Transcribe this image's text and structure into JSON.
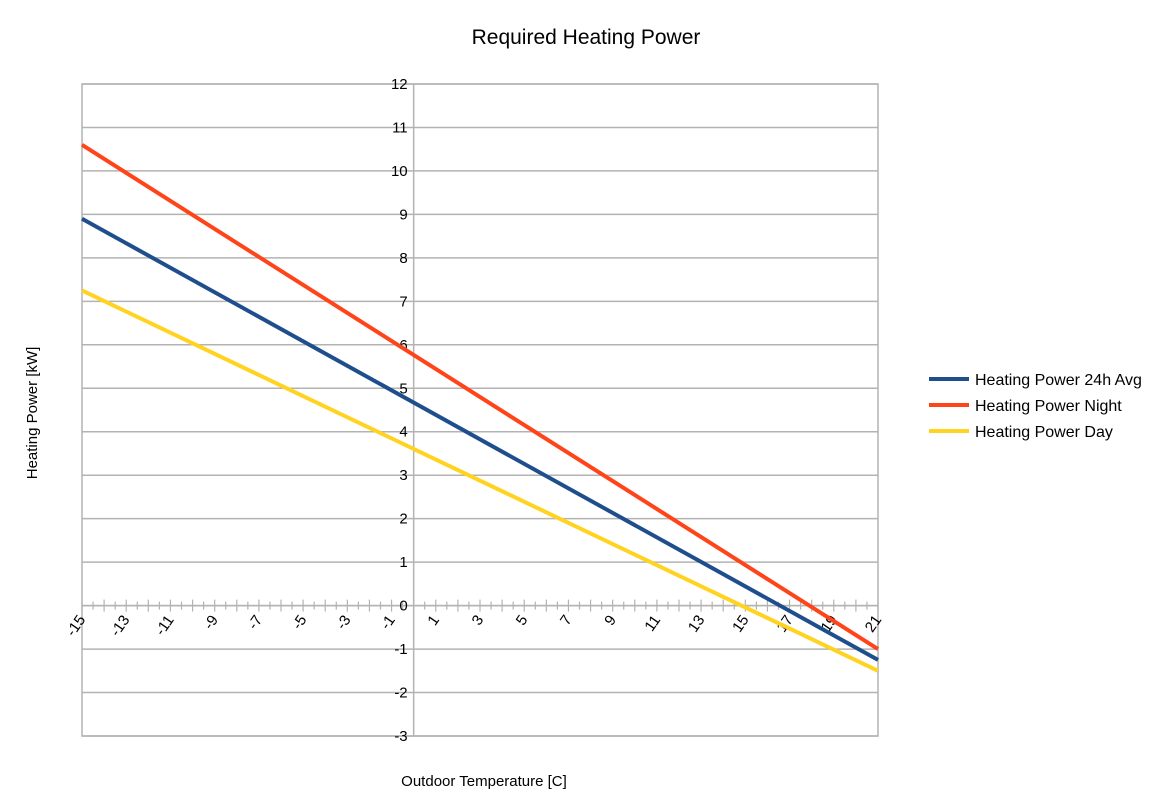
{
  "chart_data": {
    "type": "line",
    "title": "Required Heating Power",
    "xlabel": "Outdoor Temperature [C]",
    "ylabel": "Heating Power [kW]",
    "xlim": [
      -15,
      21
    ],
    "ylim": [
      -3,
      12
    ],
    "x_tick_labels": [
      "-15",
      "-13",
      "-11",
      "-9",
      "-7",
      "-5",
      "-3",
      "-1",
      "1",
      "3",
      "5",
      "7",
      "9",
      "11",
      "13",
      "15",
      "17",
      "19",
      "21"
    ],
    "y_tick_labels": [
      "-3",
      "-2",
      "-1",
      "0",
      "1",
      "2",
      "3",
      "4",
      "5",
      "6",
      "7",
      "8",
      "9",
      "10",
      "11",
      "12"
    ],
    "grid": true,
    "legend_position": "right",
    "series": [
      {
        "name": "Heating Power 24h Avg",
        "color": "#1f4e8c",
        "x": [
          -15,
          21
        ],
        "y": [
          8.9,
          -1.25
        ]
      },
      {
        "name": "Heating Power Night",
        "color": "#ff4419",
        "x": [
          -15,
          21
        ],
        "y": [
          10.6,
          -1.0
        ]
      },
      {
        "name": "Heating Power Day",
        "color": "#ffd320",
        "x": [
          -15,
          21
        ],
        "y": [
          7.25,
          -1.5
        ]
      }
    ]
  }
}
